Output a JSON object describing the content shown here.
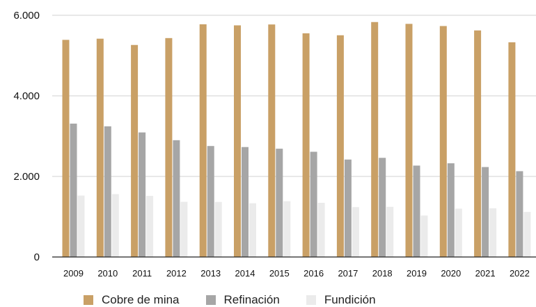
{
  "chart_data": {
    "type": "bar",
    "categories": [
      "2009",
      "2010",
      "2011",
      "2012",
      "2013",
      "2014",
      "2015",
      "2016",
      "2017",
      "2018",
      "2019",
      "2020",
      "2021",
      "2022"
    ],
    "series": [
      {
        "name": "Cobre de mina",
        "color": "#c9a066",
        "values": [
          5390,
          5419,
          5263,
          5434,
          5776,
          5750,
          5772,
          5552,
          5504,
          5832,
          5787,
          5733,
          5624,
          5330
        ]
      },
      {
        "name": "Refinación",
        "color": "#a6a6a6",
        "values": [
          3311,
          3244,
          3092,
          2899,
          2755,
          2729,
          2688,
          2612,
          2419,
          2461,
          2269,
          2326,
          2233,
          2130
        ]
      },
      {
        "name": "Fundición",
        "color": "#ebebeb",
        "values": [
          1525,
          1560,
          1516,
          1370,
          1366,
          1333,
          1386,
          1346,
          1238,
          1245,
          1030,
          1200,
          1210,
          1118
        ]
      }
    ],
    "yticks": [
      {
        "value": 0,
        "label": "0"
      },
      {
        "value": 2000,
        "label": "2.000"
      },
      {
        "value": 4000,
        "label": "4.000"
      },
      {
        "value": 6000,
        "label": "6.000"
      }
    ],
    "ylim": [
      0,
      6000
    ],
    "grid": true,
    "legend_position": "bottom",
    "title": "",
    "xlabel": "",
    "ylabel": ""
  }
}
